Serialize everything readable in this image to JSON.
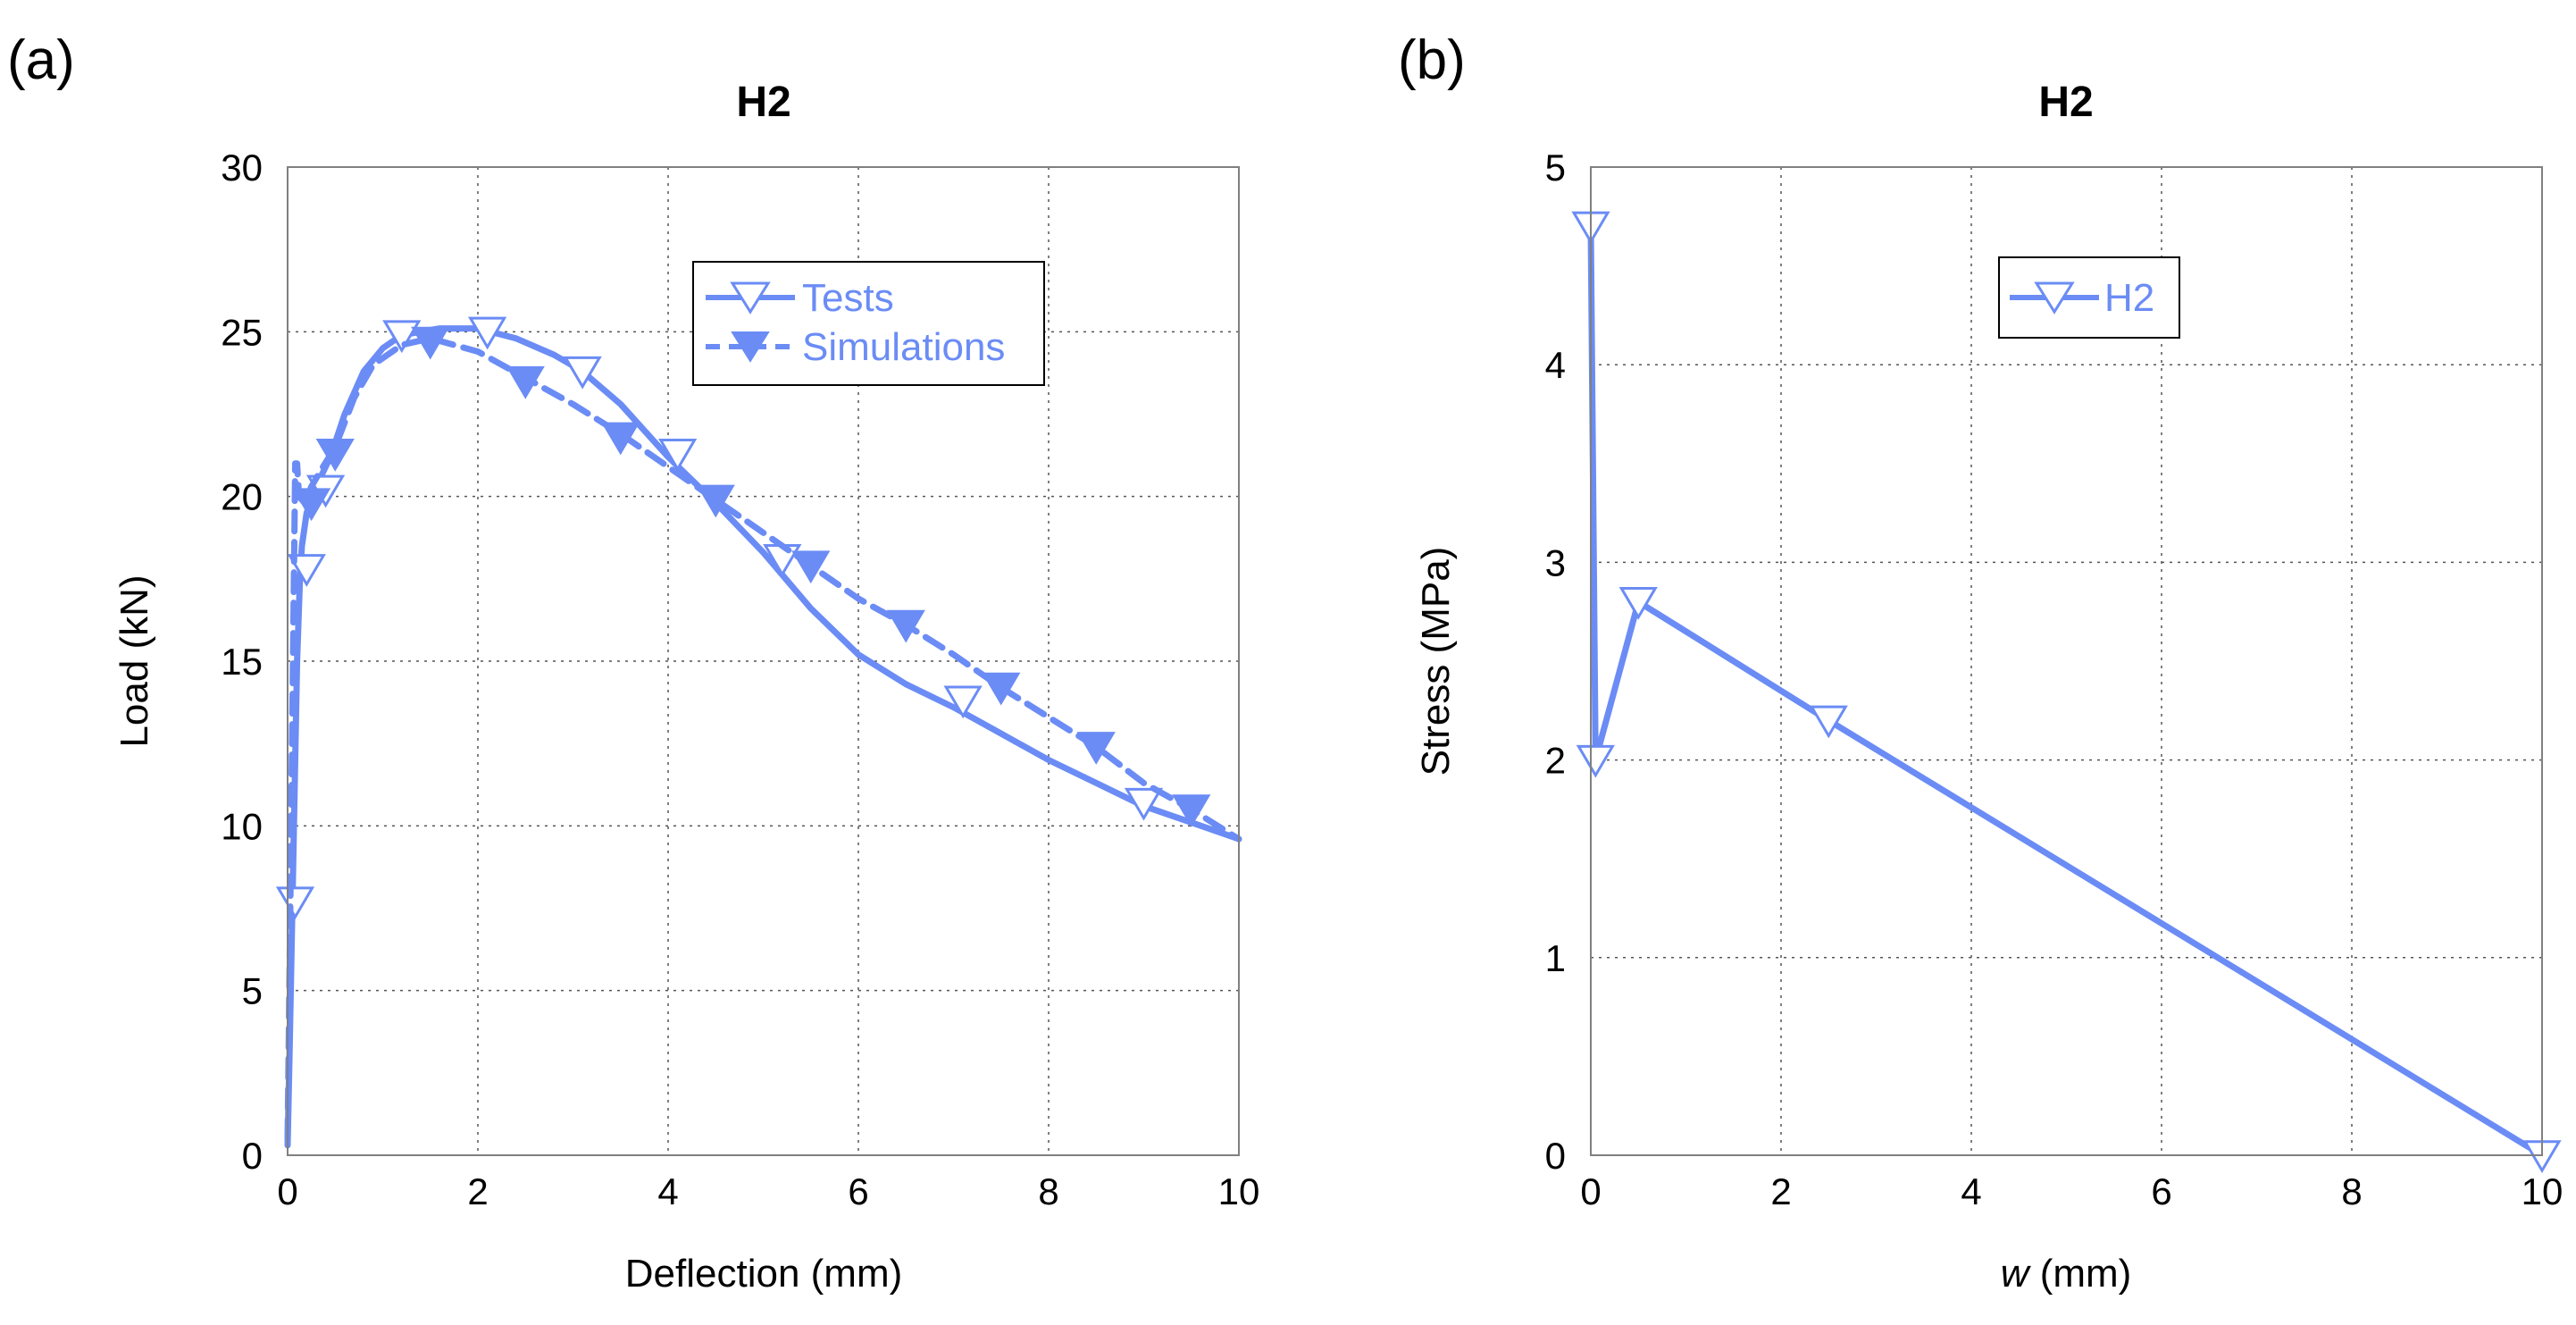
{
  "chart_data": [
    {
      "type": "line",
      "panel_label": "(a)",
      "title": "H2",
      "xlabel": "Deflection (mm)",
      "ylabel": "Load (kN)",
      "xlim": [
        0,
        10
      ],
      "ylim": [
        0,
        30
      ],
      "xticks": [
        0,
        2,
        4,
        6,
        8,
        10
      ],
      "yticks": [
        0,
        5,
        10,
        15,
        20,
        25,
        30
      ],
      "grid": true,
      "legend_position": "top-right",
      "series": [
        {
          "name": "Tests",
          "style": "solid",
          "marker": "open-down-triangle",
          "color": "#6b8cf5",
          "x": [
            0,
            0.02,
            0.05,
            0.08,
            0.1,
            0.13,
            0.15,
            0.2,
            0.3,
            0.45,
            0.6,
            0.8,
            1.0,
            1.2,
            1.6,
            2.0,
            2.4,
            2.8,
            3.1,
            3.5,
            4.0,
            4.5,
            5.0,
            5.5,
            6.0,
            6.5,
            7.0,
            7.5,
            8.0,
            8.5,
            9.0,
            9.5,
            10.0
          ],
          "y": [
            0.3,
            3,
            7.5,
            12,
            15,
            17.5,
            18.5,
            19.5,
            20.3,
            21.2,
            22.5,
            23.8,
            24.5,
            24.9,
            25.1,
            25.1,
            24.8,
            24.3,
            23.8,
            22.8,
            21.2,
            19.8,
            18.3,
            16.6,
            15.2,
            14.3,
            13.6,
            12.8,
            12.0,
            11.3,
            10.6,
            10.1,
            9.6
          ],
          "marker_x": [
            0.08,
            0.2,
            0.4,
            1.2,
            2.1,
            3.1,
            4.1,
            5.2,
            7.1,
            9.0
          ],
          "marker_y": [
            7.7,
            17.8,
            20.2,
            24.9,
            25.0,
            23.8,
            21.3,
            18.1,
            13.8,
            10.7
          ]
        },
        {
          "name": "Simulations",
          "style": "dashed",
          "marker": "filled-down-triangle",
          "color": "#6b8cf5",
          "x": [
            0,
            0.03,
            0.06,
            0.08,
            0.1,
            0.12,
            0.18,
            0.25,
            0.35,
            0.5,
            0.7,
            0.9,
            1.2,
            1.5,
            2.0,
            2.5,
            3.0,
            3.5,
            4.0,
            4.5,
            5.0,
            5.5,
            6.0,
            6.5,
            7.0,
            7.5,
            8.0,
            8.5,
            9.0,
            9.5,
            10.0
          ],
          "y": [
            0.5,
            8,
            16,
            21,
            21,
            20,
            19.8,
            20.3,
            20.8,
            21.5,
            23.0,
            24.0,
            24.6,
            24.8,
            24.4,
            23.6,
            22.8,
            21.9,
            20.9,
            19.9,
            18.9,
            17.9,
            16.9,
            16.1,
            15.2,
            14.2,
            13.3,
            12.4,
            11.3,
            10.5,
            9.6
          ],
          "marker_x": [
            0.25,
            0.5,
            1.5,
            2.5,
            3.5,
            4.5,
            5.5,
            6.5,
            7.5,
            8.5,
            9.5
          ],
          "marker_y": [
            19.8,
            21.3,
            24.7,
            23.5,
            21.8,
            19.9,
            17.9,
            16.1,
            14.2,
            12.4,
            10.5
          ]
        }
      ]
    },
    {
      "type": "line",
      "panel_label": "(b)",
      "title": "H2",
      "xlabel_italic": "w",
      "xlabel_rest": " (mm)",
      "ylabel": "Stress (MPa)",
      "xlim": [
        0,
        10
      ],
      "ylim": [
        0,
        5
      ],
      "xticks": [
        0,
        2,
        4,
        6,
        8,
        10
      ],
      "yticks": [
        0,
        1,
        2,
        3,
        4,
        5
      ],
      "grid": true,
      "legend_position": "top-center",
      "series": [
        {
          "name": "H2",
          "style": "solid",
          "marker": "open-down-triangle",
          "color": "#6b8cf5",
          "x": [
            0,
            0.05,
            0.5,
            2.5,
            10
          ],
          "y": [
            4.7,
            2.0,
            2.8,
            2.2,
            0
          ],
          "marker_x": [
            0,
            0.05,
            0.5,
            2.5,
            10
          ],
          "marker_y": [
            4.7,
            2.0,
            2.8,
            2.2,
            0
          ]
        }
      ]
    }
  ]
}
